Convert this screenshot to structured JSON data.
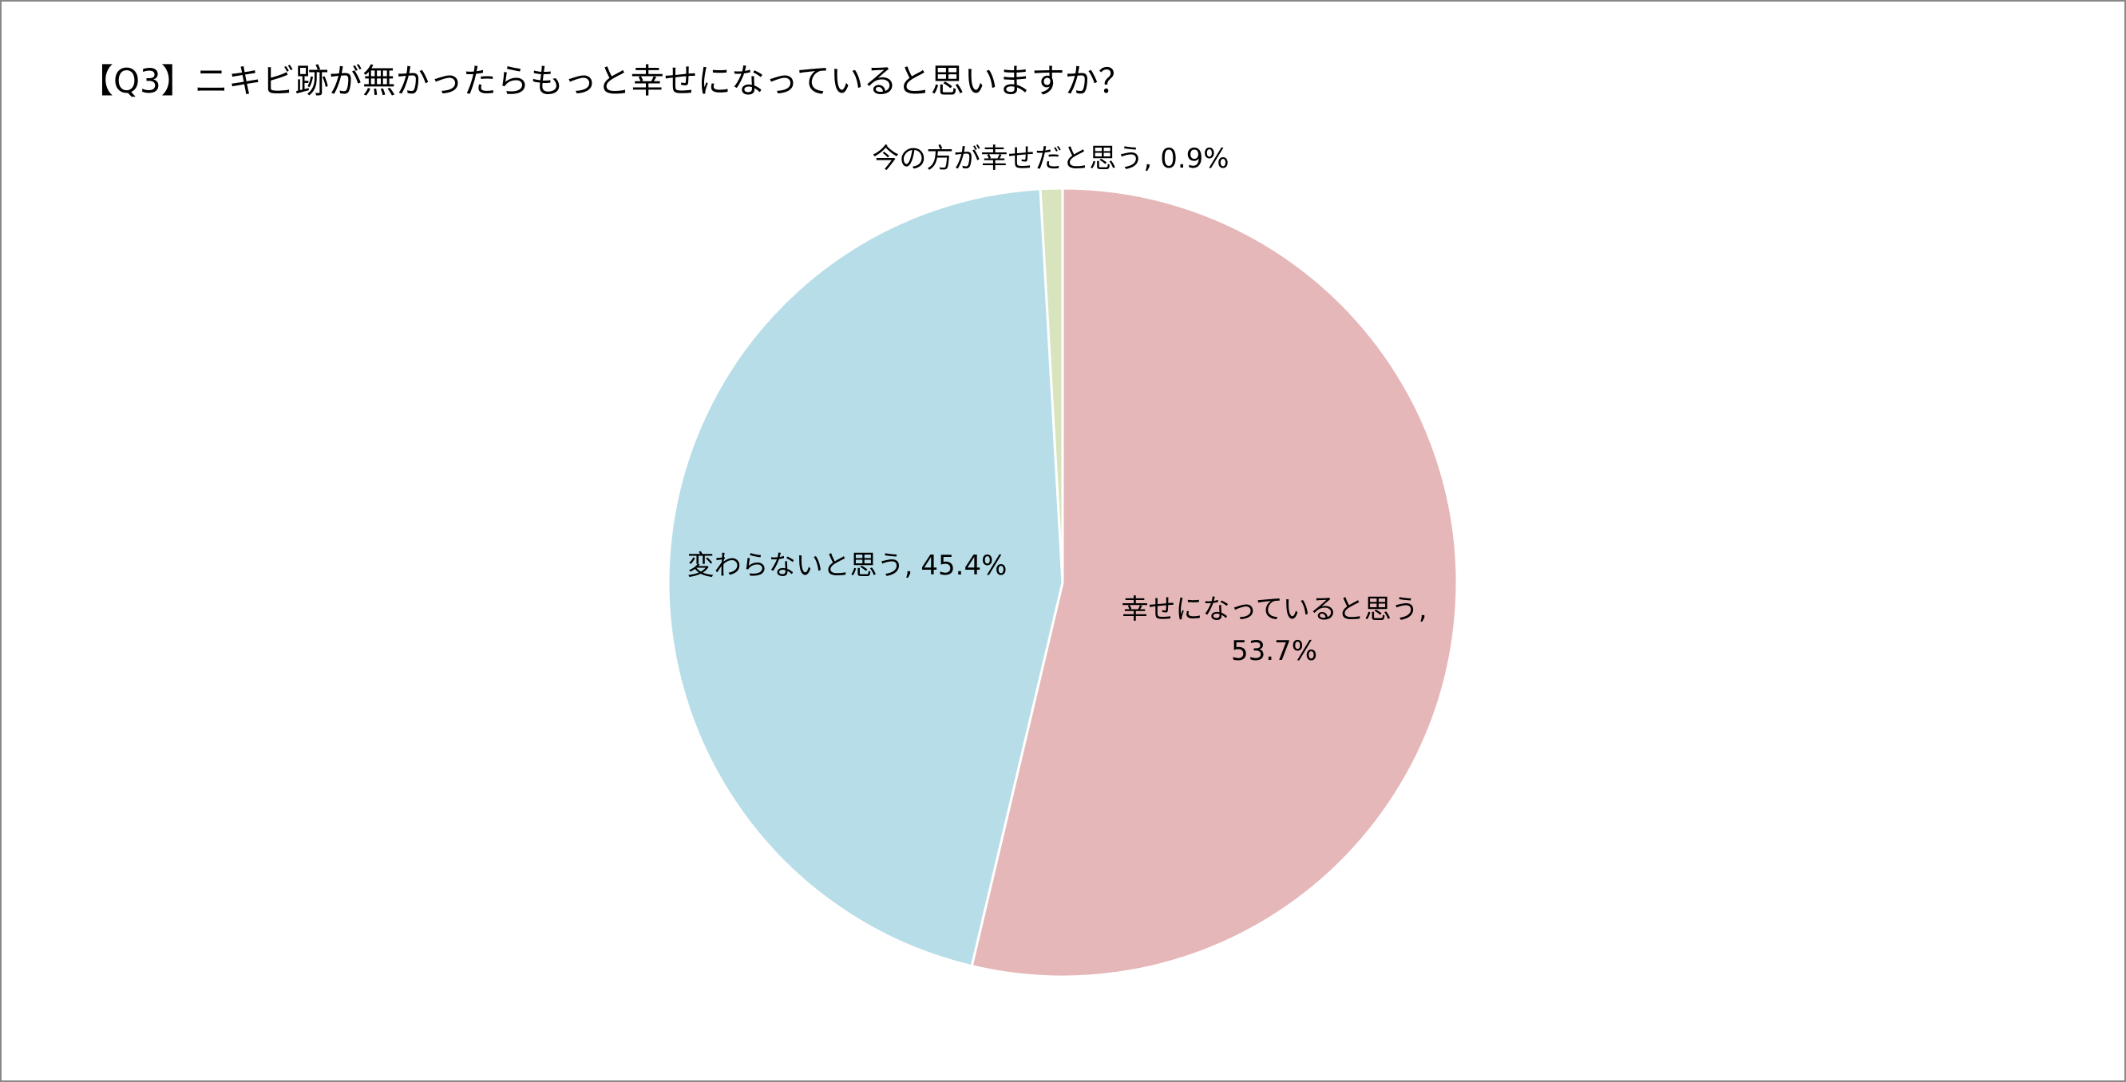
{
  "chart_data": {
    "type": "pie",
    "title": "【Q3】ニキビ跡が無かったらもっと幸せになっていると思いますか？",
    "categories": [
      "幸せになっていると思う,",
      "変わらないと思う,",
      "今の方が幸せだと思う,"
    ],
    "values": [
      53.7,
      45.4,
      0.9
    ],
    "value_labels": [
      "53.7%",
      "45.4%",
      "0.9%"
    ],
    "colors": [
      "#e6b7b8",
      "#b7dde8",
      "#d7e4bd"
    ]
  }
}
